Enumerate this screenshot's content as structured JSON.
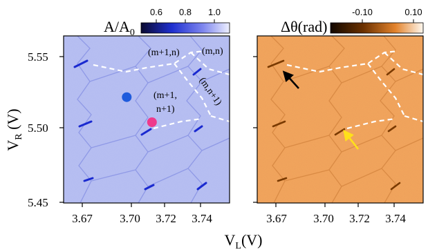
{
  "chart_data": [
    {
      "type": "heatmap",
      "panel": "left",
      "title": "",
      "colorbar": {
        "label_main": "A/A",
        "label_sub": "0",
        "ticks": [
          "0.6",
          "0.8",
          "1.0"
        ],
        "range": [
          0.5,
          1.05
        ],
        "colormap": [
          "#0a0a30",
          "#1f2fd0",
          "#7e86ee",
          "#eef0ff"
        ]
      },
      "ylabel_main": "V",
      "ylabel_sub": "R",
      "yunit": " (V)",
      "yticks": [
        "5.55",
        "5.50",
        "5.45"
      ],
      "ylim": [
        5.445,
        5.565
      ],
      "xticks": [
        "3.67",
        "3.70",
        "3.72",
        "3.74"
      ],
      "xlim": [
        3.662,
        3.754
      ],
      "region_labels": [
        "(m+1,n)",
        "(m,n)",
        "(m+1,",
        "n+1)",
        "(m,n+1)"
      ],
      "markers": [
        {
          "name": "blue-dot",
          "x": 3.697,
          "y": 5.521,
          "color": "#1f5bdc"
        },
        {
          "name": "pink-dot",
          "x": 3.711,
          "y": 5.503,
          "color": "#ee3a8c"
        }
      ]
    },
    {
      "type": "heatmap",
      "panel": "right",
      "title": "",
      "colorbar": {
        "label": "Δθ(rad)",
        "ticks": [
          "-0.10",
          "0.10"
        ],
        "range": [
          -0.22,
          0.12
        ],
        "colormap": [
          "#120800",
          "#6a3000",
          "#e3832c",
          "#fff8ef"
        ]
      },
      "xticks": [
        "3.67",
        "3.70",
        "3.72",
        "3.74"
      ],
      "xlim": [
        3.662,
        3.754
      ],
      "ylim": [
        5.445,
        5.565
      ],
      "arrows": [
        {
          "name": "black-arrow",
          "color": "#000000"
        },
        {
          "name": "yellow-arrow",
          "color": "#ffe11a"
        }
      ]
    }
  ],
  "xlabel_main": "V",
  "xlabel_sub": "L",
  "xunit": "(V)",
  "colors": {
    "left_panel_bg": "#b4bcf0",
    "left_panel_line": "#1a2ad0",
    "left_panel_faint": "#8f99e6",
    "right_panel_bg": "#efa05a",
    "right_panel_line": "#7a3a00",
    "right_panel_faint": "#d98a44",
    "dashed_boundary": "#ffffff"
  }
}
